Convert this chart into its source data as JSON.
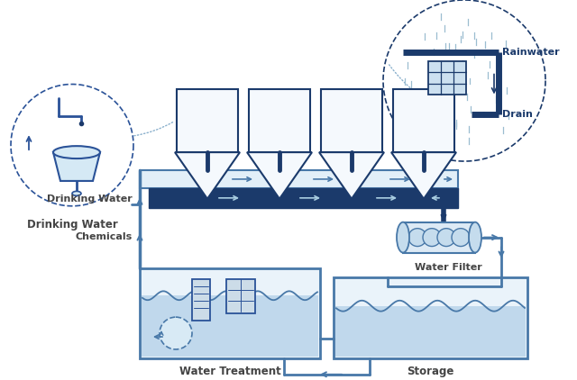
{
  "bg_color": "#ffffff",
  "dark_blue": "#1b3a6b",
  "mid_blue": "#2a5298",
  "pipe_color": "#4878a8",
  "text_color": "#444444",
  "label_dark": "#1b3a6b",
  "light_fill": "#e8f2f9",
  "water_fill": "#c0d8ec",
  "labels": {
    "rainwater": "Rainwater",
    "drain": "Drain",
    "drinking_water": "Drinking Water",
    "chemicals": "Chemicals",
    "water_filter": "Water Filter",
    "water_treatment": "Water Treatment",
    "storage": "Storage"
  },
  "fig_w": 6.4,
  "fig_h": 4.22,
  "dpi": 100
}
